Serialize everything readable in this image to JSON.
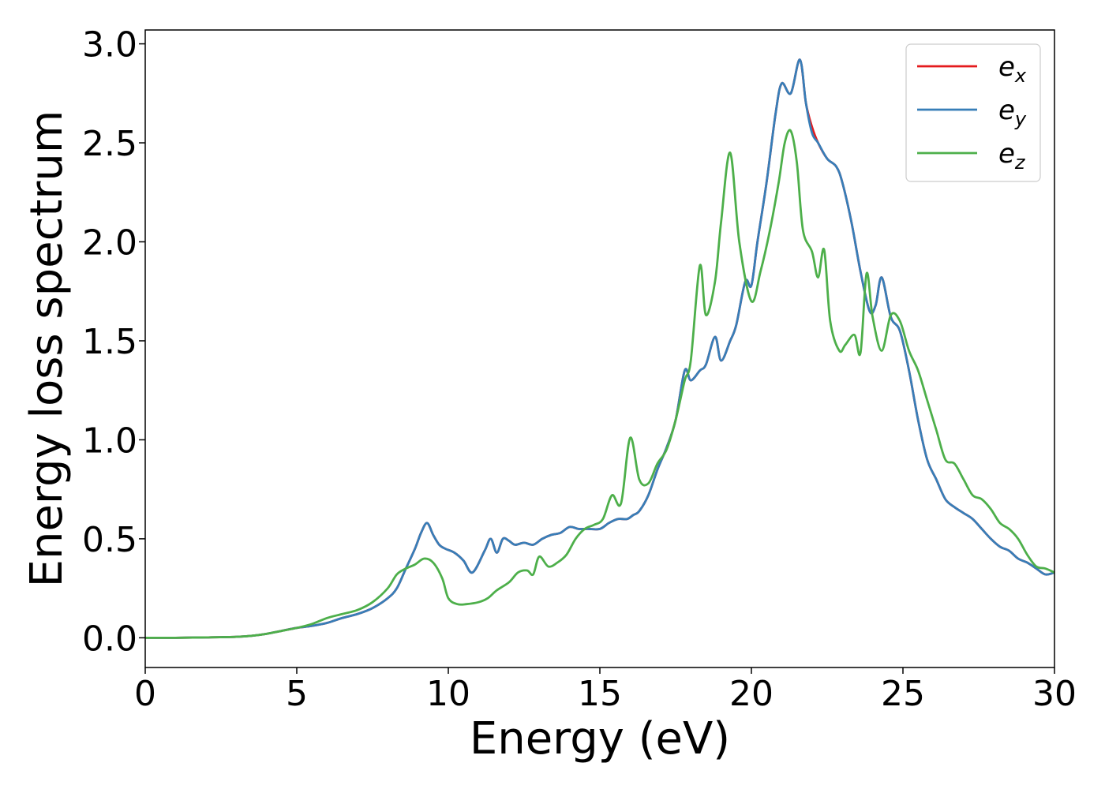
{
  "chart_data": {
    "type": "line",
    "xlabel": "Energy (eV)",
    "ylabel": "Energy loss spectrum",
    "xlim": [
      0,
      30
    ],
    "ylim": [
      -0.15,
      3.07
    ],
    "xticks": [
      0,
      5,
      10,
      15,
      20,
      25,
      30
    ],
    "xtick_labels": [
      "0",
      "5",
      "10",
      "15",
      "20",
      "25",
      "30"
    ],
    "yticks": [
      0.0,
      0.5,
      1.0,
      1.5,
      2.0,
      2.5,
      3.0
    ],
    "ytick_labels": [
      "0.0",
      "0.5",
      "1.0",
      "1.5",
      "2.0",
      "2.5",
      "3.0"
    ],
    "grid": false,
    "legend_position": "top-right",
    "series": [
      {
        "name": "e_x",
        "legend_base": "e",
        "legend_sub": "x",
        "color": "#e41a1c",
        "x": [
          0,
          1,
          2,
          3,
          3.5,
          4,
          4.5,
          5,
          5.5,
          6,
          6.5,
          7,
          7.5,
          8,
          8.3,
          8.6,
          8.9,
          9.1,
          9.3,
          9.5,
          9.7,
          9.9,
          10.2,
          10.5,
          10.8,
          11.2,
          11.4,
          11.6,
          11.8,
          12.0,
          12.2,
          12.5,
          12.8,
          13.1,
          13.4,
          13.7,
          14.0,
          14.3,
          14.6,
          15.0,
          15.3,
          15.6,
          15.9,
          16.1,
          16.3,
          16.6,
          16.9,
          17.2,
          17.5,
          17.8,
          18.0,
          18.3,
          18.5,
          18.8,
          19.0,
          19.3,
          19.5,
          19.8,
          20.0,
          20.2,
          20.5,
          20.8,
          21.0,
          21.3,
          21.6,
          21.8,
          22.0,
          22.2,
          22.5,
          22.8,
          23.0,
          23.3,
          23.6,
          23.9,
          24.1,
          24.3,
          24.6,
          24.9,
          25.2,
          25.5,
          25.8,
          26.1,
          26.4,
          26.7,
          27.0,
          27.3,
          27.6,
          27.9,
          28.2,
          28.5,
          28.8,
          29.1,
          29.4,
          29.7,
          30
        ],
        "y": [
          0,
          0,
          0.002,
          0.005,
          0.01,
          0.02,
          0.035,
          0.05,
          0.06,
          0.075,
          0.1,
          0.12,
          0.15,
          0.2,
          0.25,
          0.35,
          0.45,
          0.53,
          0.58,
          0.52,
          0.47,
          0.45,
          0.43,
          0.39,
          0.33,
          0.44,
          0.5,
          0.43,
          0.5,
          0.49,
          0.47,
          0.48,
          0.47,
          0.5,
          0.52,
          0.53,
          0.56,
          0.55,
          0.55,
          0.55,
          0.58,
          0.6,
          0.6,
          0.62,
          0.64,
          0.72,
          0.85,
          0.96,
          1.1,
          1.35,
          1.3,
          1.35,
          1.38,
          1.52,
          1.4,
          1.5,
          1.58,
          1.8,
          1.78,
          2.0,
          2.3,
          2.65,
          2.8,
          2.75,
          2.92,
          2.7,
          2.58,
          2.5,
          2.42,
          2.38,
          2.3,
          2.1,
          1.85,
          1.65,
          1.68,
          1.82,
          1.62,
          1.55,
          1.35,
          1.1,
          0.9,
          0.8,
          0.7,
          0.66,
          0.63,
          0.6,
          0.55,
          0.5,
          0.46,
          0.44,
          0.4,
          0.38,
          0.35,
          0.32,
          0.33
        ]
      },
      {
        "name": "e_y",
        "legend_base": "e",
        "legend_sub": "y",
        "color": "#377eb8",
        "x": [
          0,
          1,
          2,
          3,
          3.5,
          4,
          4.5,
          5,
          5.5,
          6,
          6.5,
          7,
          7.5,
          8,
          8.3,
          8.6,
          8.9,
          9.1,
          9.3,
          9.5,
          9.7,
          9.9,
          10.2,
          10.5,
          10.8,
          11.2,
          11.4,
          11.6,
          11.8,
          12.0,
          12.2,
          12.5,
          12.8,
          13.1,
          13.4,
          13.7,
          14.0,
          14.3,
          14.6,
          15.0,
          15.3,
          15.6,
          15.9,
          16.1,
          16.3,
          16.6,
          16.9,
          17.2,
          17.5,
          17.8,
          18.0,
          18.3,
          18.5,
          18.8,
          19.0,
          19.3,
          19.5,
          19.8,
          20.0,
          20.2,
          20.5,
          20.8,
          21.0,
          21.3,
          21.6,
          21.8,
          22.0,
          22.2,
          22.5,
          22.8,
          23.0,
          23.3,
          23.6,
          23.9,
          24.1,
          24.3,
          24.6,
          24.9,
          25.2,
          25.5,
          25.8,
          26.1,
          26.4,
          26.7,
          27.0,
          27.3,
          27.6,
          27.9,
          28.2,
          28.5,
          28.8,
          29.1,
          29.4,
          29.7,
          30
        ],
        "y": [
          0,
          0,
          0.002,
          0.005,
          0.01,
          0.02,
          0.035,
          0.05,
          0.06,
          0.075,
          0.1,
          0.12,
          0.15,
          0.2,
          0.25,
          0.35,
          0.45,
          0.53,
          0.58,
          0.52,
          0.47,
          0.45,
          0.43,
          0.39,
          0.33,
          0.44,
          0.5,
          0.43,
          0.5,
          0.49,
          0.47,
          0.48,
          0.47,
          0.5,
          0.52,
          0.53,
          0.56,
          0.55,
          0.55,
          0.55,
          0.58,
          0.6,
          0.6,
          0.62,
          0.64,
          0.72,
          0.85,
          0.96,
          1.1,
          1.35,
          1.3,
          1.35,
          1.38,
          1.52,
          1.4,
          1.5,
          1.58,
          1.8,
          1.78,
          2.0,
          2.3,
          2.65,
          2.8,
          2.75,
          2.92,
          2.7,
          2.55,
          2.5,
          2.42,
          2.38,
          2.3,
          2.1,
          1.85,
          1.65,
          1.68,
          1.82,
          1.62,
          1.55,
          1.35,
          1.1,
          0.9,
          0.8,
          0.7,
          0.66,
          0.63,
          0.6,
          0.55,
          0.5,
          0.46,
          0.44,
          0.4,
          0.38,
          0.35,
          0.32,
          0.33
        ]
      },
      {
        "name": "e_z",
        "legend_base": "e",
        "legend_sub": "z",
        "color": "#4daf4a",
        "x": [
          0,
          1,
          2,
          3,
          3.5,
          4,
          4.5,
          5,
          5.5,
          6,
          6.5,
          7,
          7.5,
          8,
          8.3,
          8.6,
          8.9,
          9.2,
          9.5,
          9.8,
          10.0,
          10.3,
          10.6,
          11.0,
          11.3,
          11.6,
          12.0,
          12.3,
          12.6,
          12.8,
          13.0,
          13.3,
          13.6,
          13.9,
          14.2,
          14.5,
          14.8,
          15.1,
          15.4,
          15.7,
          16.0,
          16.3,
          16.6,
          16.9,
          17.2,
          17.5,
          17.8,
          18.0,
          18.3,
          18.5,
          18.8,
          19.0,
          19.3,
          19.6,
          20.0,
          20.3,
          20.6,
          20.9,
          21.1,
          21.3,
          21.5,
          21.7,
          22.0,
          22.2,
          22.4,
          22.6,
          22.9,
          23.1,
          23.4,
          23.6,
          23.8,
          24.0,
          24.3,
          24.6,
          24.9,
          25.2,
          25.5,
          25.8,
          26.1,
          26.4,
          26.7,
          27.0,
          27.3,
          27.6,
          27.9,
          28.2,
          28.5,
          28.8,
          29.1,
          29.4,
          29.7,
          30
        ],
        "y": [
          0,
          0,
          0.002,
          0.005,
          0.01,
          0.02,
          0.035,
          0.05,
          0.07,
          0.1,
          0.12,
          0.14,
          0.18,
          0.25,
          0.32,
          0.35,
          0.37,
          0.4,
          0.38,
          0.3,
          0.2,
          0.17,
          0.17,
          0.18,
          0.2,
          0.24,
          0.28,
          0.33,
          0.34,
          0.32,
          0.41,
          0.36,
          0.38,
          0.42,
          0.5,
          0.55,
          0.57,
          0.6,
          0.72,
          0.68,
          1.01,
          0.8,
          0.78,
          0.88,
          0.95,
          1.1,
          1.3,
          1.4,
          1.88,
          1.63,
          1.8,
          2.1,
          2.45,
          2.0,
          1.7,
          1.85,
          2.05,
          2.3,
          2.5,
          2.56,
          2.4,
          2.06,
          1.95,
          1.82,
          1.96,
          1.6,
          1.45,
          1.48,
          1.53,
          1.44,
          1.84,
          1.62,
          1.45,
          1.63,
          1.6,
          1.45,
          1.35,
          1.2,
          1.05,
          0.9,
          0.88,
          0.8,
          0.72,
          0.7,
          0.65,
          0.58,
          0.55,
          0.5,
          0.42,
          0.36,
          0.35,
          0.33
        ]
      }
    ]
  }
}
